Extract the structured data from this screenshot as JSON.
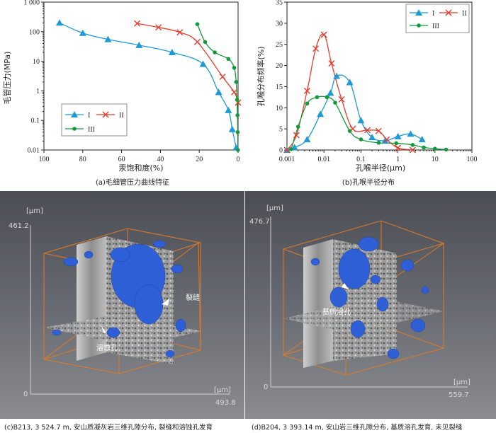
{
  "colors": {
    "series_I": "#1f9ad6",
    "series_II": "#e83a2a",
    "series_III": "#129a3a",
    "ct_bg": "#5b5f66",
    "pore": "#2f5fd6",
    "box": "#e07a26"
  },
  "chart_data": [
    {
      "id": "a",
      "type": "line",
      "ylabel": "毛管压力(MPa)",
      "xlabel": "汞饱和度(%)",
      "caption": "(a)毛细管压力曲线特征",
      "x_scale": "linear-reversed",
      "y_scale": "log",
      "xlim": [
        100,
        0
      ],
      "ylim": [
        0.01,
        1000
      ],
      "x_ticks": [
        "100",
        "80",
        "60",
        "40",
        "20",
        "0"
      ],
      "y_ticks": [
        "1 000",
        "100",
        "10",
        "1",
        "0.1",
        "0.01"
      ],
      "legend_position": "bottom-left",
      "series": [
        {
          "name": "I",
          "marker": "triangle",
          "x": [
            92,
            80,
            67,
            51,
            34,
            18,
            10,
            5,
            3,
            1
          ],
          "y": [
            200,
            90,
            55,
            35,
            20,
            8,
            0.9,
            0.22,
            0.05,
            0.012
          ]
        },
        {
          "name": "II",
          "marker": "x",
          "x": [
            52,
            41,
            30,
            21,
            8,
            2,
            0
          ],
          "y": [
            190,
            140,
            95,
            45,
            3,
            0.9,
            0.4
          ]
        },
        {
          "name": "III",
          "marker": "dot",
          "x": [
            21,
            17,
            12,
            5,
            2,
            1,
            0.5,
            0.3,
            0.2,
            0.1
          ],
          "y": [
            180,
            45,
            20,
            12,
            6,
            2,
            0.5,
            0.15,
            0.04,
            0.01
          ]
        }
      ]
    },
    {
      "id": "b",
      "type": "line",
      "ylabel": "孔喉分布频率(%)",
      "xlabel": "孔喉半径(μm)",
      "caption": "(b)孔喉半径分布",
      "x_scale": "log",
      "y_scale": "linear",
      "xlim": [
        0.001,
        100
      ],
      "ylim": [
        0,
        35
      ],
      "x_ticks": [
        "0.001",
        "0.01",
        "0.1",
        "1",
        "10",
        "100"
      ],
      "y_ticks": [
        "0",
        "5",
        "10",
        "15",
        "20",
        "25",
        "30",
        "35"
      ],
      "legend_position": "top-right",
      "series": [
        {
          "name": "I",
          "marker": "triangle",
          "x": [
            0.001,
            0.0016,
            0.0035,
            0.008,
            0.015,
            0.022,
            0.05,
            0.1,
            0.2,
            0.45,
            1.0,
            2.2,
            4.5
          ],
          "y": [
            0,
            0.6,
            2.5,
            8.5,
            13.5,
            17.5,
            16,
            7,
            3,
            2.2,
            3.2,
            3.8,
            2.5
          ]
        },
        {
          "name": "II",
          "marker": "x",
          "x": [
            0.001,
            0.0018,
            0.0035,
            0.006,
            0.01,
            0.016,
            0.03,
            0.06,
            0.15,
            0.3,
            0.5,
            1.0,
            2.5
          ],
          "y": [
            0,
            3.5,
            14,
            24,
            27.3,
            20.5,
            12,
            5,
            4.7,
            4.5,
            2.5,
            0.5,
            0
          ]
        },
        {
          "name": "III",
          "marker": "dot",
          "x": [
            0.0013,
            0.002,
            0.0035,
            0.0065,
            0.012,
            0.02,
            0.05,
            0.1,
            0.3,
            0.9,
            2.5,
            5,
            10,
            20
          ],
          "y": [
            0.2,
            5.5,
            11,
            12.5,
            12.5,
            11.2,
            4.5,
            2.5,
            1.7,
            1.6,
            1.2,
            0.6,
            0.3,
            0.1
          ]
        }
      ]
    }
  ],
  "ct_panels": [
    {
      "id": "c",
      "unit_top": "[μm]",
      "unit_right": "[μm]",
      "y_max": "461.2",
      "origin": "0",
      "x_max": "493.8",
      "annotations": [
        "裂缝",
        "溶蚀孔"
      ],
      "caption": "(c)B213, 3 524.7 m, 安山质凝灰岩三维孔隙分布, 裂缝和溶蚀孔发育"
    },
    {
      "id": "d",
      "unit_top": "[μm]",
      "unit_right": "[μm]",
      "y_max": "476.7",
      "origin": "0",
      "x_max": "559.7",
      "annotations": [
        "基质溶孔"
      ],
      "caption": "(d)B204, 3 393.14 m, 安山岩三维孔隙分布, 基质溶孔发育, 未见裂缝"
    }
  ]
}
